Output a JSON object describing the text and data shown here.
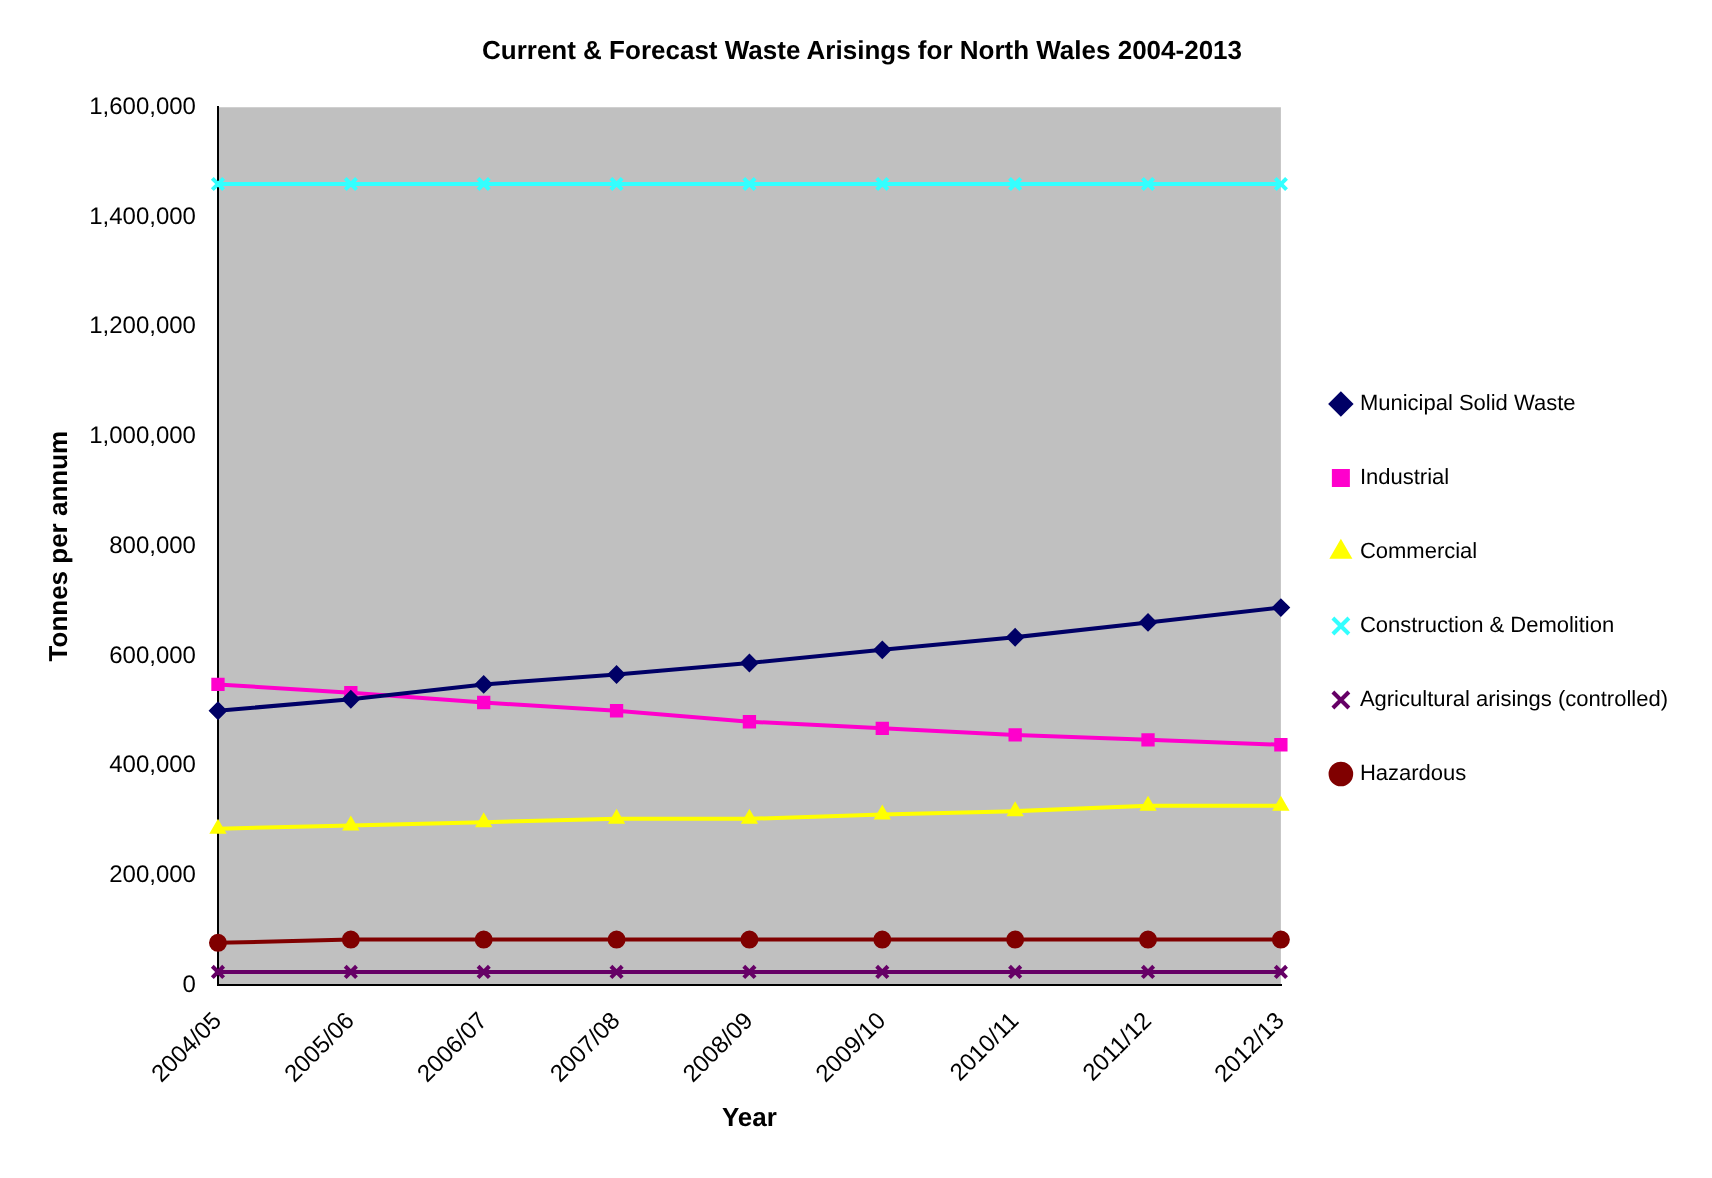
{
  "chart_data": {
    "type": "line",
    "title": "Current & Forecast Waste Arisings for North Wales 2004-2013",
    "xlabel": "Year",
    "ylabel": "Tonnes per annum",
    "categories": [
      "2004/05",
      "2005/06",
      "2006/07",
      "2007/08",
      "2008/09",
      "2009/10",
      "2010/11",
      "2011/12",
      "2012/13"
    ],
    "series": [
      {
        "name": "Municipal Solid Waste",
        "color": "#000066",
        "marker": "diamond",
        "values": [
          500000,
          521000,
          548000,
          566000,
          587000,
          611000,
          634000,
          661000,
          688000
        ]
      },
      {
        "name": "Industrial",
        "color": "#ff00cc",
        "marker": "square",
        "values": [
          548000,
          533000,
          515000,
          500000,
          480000,
          468000,
          456000,
          447000,
          438000
        ]
      },
      {
        "name": "Commercial",
        "color": "#ffff00",
        "marker": "triangle",
        "values": [
          285000,
          291000,
          297000,
          303000,
          303000,
          311000,
          317000,
          327000,
          327000
        ]
      },
      {
        "name": "Construction & Demolition",
        "color": "#33ffff",
        "marker": "cross",
        "values": [
          1460000,
          1460000,
          1460000,
          1460000,
          1460000,
          1460000,
          1460000,
          1460000,
          1460000
        ]
      },
      {
        "name": "Agricultural arisings (controlled)",
        "color": "#660066",
        "marker": "cross",
        "values": [
          24000,
          24000,
          24000,
          24000,
          24000,
          24000,
          24000,
          24000,
          24000
        ]
      },
      {
        "name": "Hazardous",
        "color": "#800000",
        "marker": "circle",
        "values": [
          77000,
          83000,
          83000,
          83000,
          83000,
          83000,
          83000,
          83000,
          83000
        ]
      }
    ],
    "ylim": [
      0,
      1600000
    ],
    "yticks": [
      {
        "value": 0,
        "label": "0"
      },
      {
        "value": 200000,
        "label": "200,000"
      },
      {
        "value": 400000,
        "label": "400,000"
      },
      {
        "value": 600000,
        "label": "600,000"
      },
      {
        "value": 800000,
        "label": "800,000"
      },
      {
        "value": 1000000,
        "label": "1,000,000"
      },
      {
        "value": 1200000,
        "label": "1,200,000"
      },
      {
        "value": 1400000,
        "label": "1,400,000"
      },
      {
        "value": 1600000,
        "label": "1,600,000"
      }
    ],
    "grid": false,
    "legend": "right",
    "line_style": "solid"
  }
}
